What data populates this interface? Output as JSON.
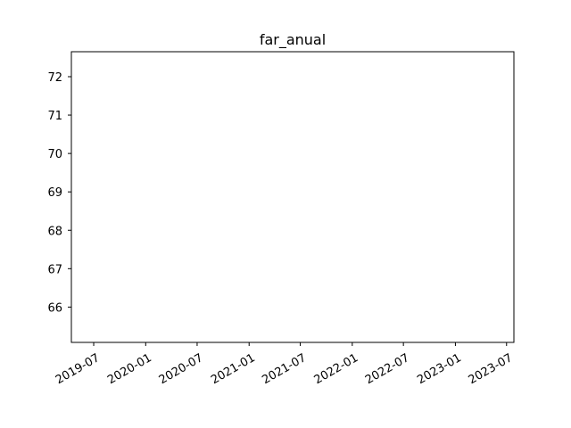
{
  "chart_data": {
    "type": "line",
    "title": "far_anual",
    "xlabel": "",
    "ylabel": "",
    "x_type": "date",
    "xlim": [
      "2019-04-13",
      "2023-07-27"
    ],
    "ylim": [
      65.08,
      72.65
    ],
    "x_ticks": [
      "2019-07",
      "2020-01",
      "2020-07",
      "2021-01",
      "2021-07",
      "2022-01",
      "2022-07",
      "2023-01",
      "2023-07"
    ],
    "x_tick_dates": [
      "2019-07-01",
      "2020-01-01",
      "2020-07-01",
      "2021-01-01",
      "2021-07-01",
      "2022-01-01",
      "2022-07-01",
      "2023-01-01",
      "2023-07-01"
    ],
    "y_ticks": [
      "66",
      "67",
      "68",
      "69",
      "70",
      "71",
      "72"
    ],
    "y_tick_values": [
      66,
      67,
      68,
      69,
      70,
      71,
      72
    ],
    "series": [],
    "grid": false,
    "legend": "none"
  }
}
